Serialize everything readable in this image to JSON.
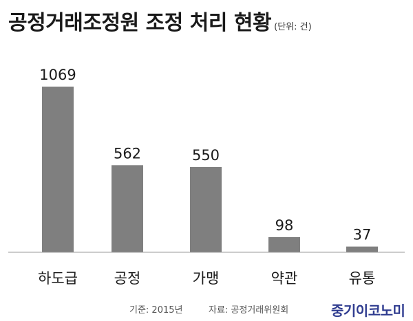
{
  "title": "공정거래조정원 조정 처리 현황",
  "unit": "(단위: 건)",
  "footer": {
    "basis": "기준: 2015년",
    "source": "자료: 공정거래위원회"
  },
  "brand": "중기이코노미",
  "colors": {
    "bar": "#7f7f7f",
    "axis": "#999999",
    "brand": "#2e3b8f"
  },
  "chart_data": {
    "type": "bar",
    "title": "공정거래조정원 조정 처리 현황",
    "categories": [
      "하도급",
      "공정",
      "가맹",
      "약관",
      "유통"
    ],
    "values": [
      1069,
      562,
      550,
      98,
      37
    ],
    "xlabel": "",
    "ylabel": "",
    "ylim": [
      0,
      1069
    ],
    "grid": false,
    "data_labels": true
  }
}
